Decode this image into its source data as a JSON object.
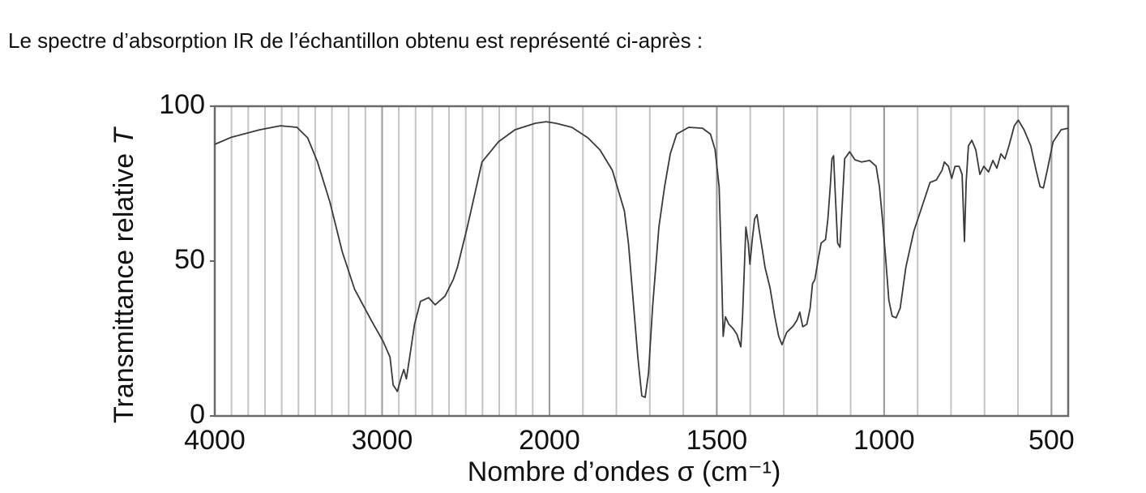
{
  "intro": "Le spectre d’absorption IR de l’échantillon obtenu est représenté ci-après :",
  "chart_data": {
    "type": "line",
    "xlabel": "Nombre d’ondes σ (cm⁻¹)",
    "ylabel": "Transmittance relative",
    "ylabel_symbol": "T",
    "color": "#3a3a3a",
    "xlim": [
      4000,
      450
    ],
    "x_scale_change": 2000,
    "xticks": [
      4000,
      3000,
      2000,
      1500,
      1000,
      500
    ],
    "xgrid": [
      3900,
      3800,
      3700,
      3600,
      3500,
      3400,
      3300,
      3200,
      3100,
      3000,
      2900,
      2800,
      2700,
      2600,
      2500,
      2400,
      2300,
      2200,
      2100,
      2000,
      1900,
      1800,
      1700,
      1600,
      1500,
      1400,
      1300,
      1200,
      1100,
      1000,
      900,
      800,
      700,
      600,
      500
    ],
    "ylim": [
      0,
      100
    ],
    "yticks": [
      0,
      50,
      100
    ],
    "x": [
      4000,
      3900,
      3730,
      3607,
      3509,
      3445,
      3386,
      3312,
      3238,
      3165,
      3066,
      2993,
      2953,
      2934,
      2909,
      2885,
      2870,
      2855,
      2835,
      2806,
      2771,
      2722,
      2683,
      2624,
      2575,
      2550,
      2491,
      2403,
      2305,
      2206,
      2084,
      2020,
      1981,
      1933,
      1885,
      1849,
      1812,
      1776,
      1764,
      1752,
      1736,
      1724,
      1714,
      1704,
      1692,
      1673,
      1656,
      1639,
      1620,
      1584,
      1543,
      1519,
      1505,
      1493,
      1486,
      1481,
      1474,
      1464,
      1452,
      1440,
      1428,
      1423,
      1413,
      1406,
      1401,
      1394,
      1387,
      1380,
      1373,
      1363,
      1356,
      1341,
      1327,
      1315,
      1305,
      1291,
      1272,
      1260,
      1252,
      1243,
      1231,
      1221,
      1214,
      1207,
      1197,
      1188,
      1175,
      1168,
      1161,
      1156,
      1151,
      1147,
      1139,
      1132,
      1125,
      1118,
      1103,
      1087,
      1067,
      1043,
      1024,
      1014,
      1005,
      995,
      986,
      976,
      964,
      952,
      935,
      911,
      887,
      863,
      844,
      827,
      820,
      808,
      798,
      788,
      776,
      767,
      760,
      755,
      748,
      738,
      726,
      714,
      702,
      688,
      675,
      663,
      651,
      639,
      627,
      611,
      599,
      582,
      562,
      546,
      534,
      524,
      510,
      495,
      471,
      450
    ],
    "values": [
      87.7,
      90,
      92.4,
      93.7,
      93.2,
      89.8,
      82,
      69,
      53,
      41,
      31,
      24,
      19,
      10,
      7.9,
      12.6,
      15,
      12,
      19,
      29.6,
      37,
      38.2,
      35.9,
      38.7,
      44,
      48,
      61,
      82,
      88.5,
      92.4,
      94.5,
      95,
      94.5,
      93.2,
      89.8,
      85.9,
      79.3,
      66.2,
      55.8,
      40,
      19,
      6.5,
      6,
      13.9,
      34.8,
      61,
      74,
      84.6,
      91,
      93.2,
      92.9,
      91,
      86,
      74,
      48,
      25.7,
      32,
      29.6,
      28.3,
      26.4,
      22.3,
      32.2,
      61,
      55.8,
      49,
      57,
      63.6,
      65,
      59.7,
      53,
      48,
      41.4,
      32.2,
      25.7,
      23,
      27,
      29,
      31,
      33.5,
      28.8,
      29.6,
      34.8,
      42.7,
      44,
      50.5,
      55.8,
      57,
      63.6,
      74,
      83,
      84,
      74,
      55.8,
      54.5,
      68.8,
      83,
      85.3,
      82.7,
      82,
      82.5,
      80.6,
      74,
      63.6,
      50.5,
      37.4,
      32.2,
      31.7,
      34.8,
      48,
      59.7,
      67.5,
      75.4,
      76.2,
      79.3,
      82,
      80.6,
      76.7,
      80.6,
      80.6,
      78,
      56.3,
      75.4,
      87.2,
      89,
      85.9,
      78,
      80.6,
      78.8,
      82.5,
      80,
      84.6,
      83,
      87.2,
      93.7,
      95.5,
      92.4,
      87.2,
      79.3,
      74,
      73.6,
      80.6,
      88.5,
      92.4,
      92.9
    ]
  }
}
